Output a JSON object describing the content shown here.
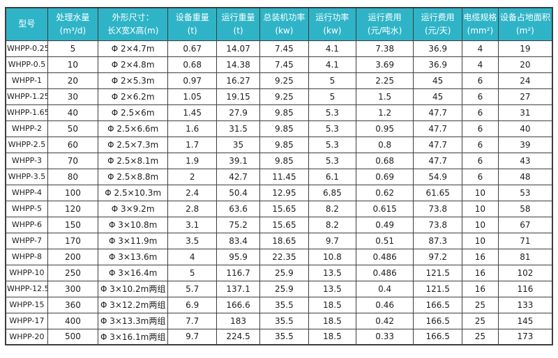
{
  "colors": {
    "header_bg": "#2fb4c7",
    "header_text": "#ffffff",
    "border": "#3d3d3d",
    "body_text": "#1d1d1d"
  },
  "table": {
    "columns": [
      {
        "id": "model",
        "line1": "型号",
        "line2": ""
      },
      {
        "id": "water-volume",
        "line1": "处理水量",
        "line2": "(m³/d)"
      },
      {
        "id": "dimensions",
        "line1": "外形尺寸：",
        "line2": "长X宽X高(m)"
      },
      {
        "id": "equipment-weight",
        "line1": "设备重量",
        "line2": "(t)"
      },
      {
        "id": "operating-weight",
        "line1": "运行重量",
        "line2": "(t)"
      },
      {
        "id": "total-power",
        "line1": "总装机功率",
        "line2": "(kw)"
      },
      {
        "id": "operating-power",
        "line1": "运行功率",
        "line2": "(kw)"
      },
      {
        "id": "cost-per-ton",
        "line1": "运行费用",
        "line2": "(元/吨水)"
      },
      {
        "id": "cost-per-day",
        "line1": "运行费用",
        "line2": "(元/天)"
      },
      {
        "id": "cable-spec",
        "line1": "电缆规格",
        "line2": "(mm²)"
      },
      {
        "id": "footprint",
        "line1": "设备占地面积",
        "line2": "(m²)"
      }
    ],
    "rows": [
      [
        "WHPP-0.25",
        "5",
        "Φ 2×4.7m",
        "0.67",
        "14.07",
        "7.45",
        "4.1",
        "7.38",
        "36.9",
        "4",
        "19"
      ],
      [
        "WHPP-0.5",
        "10",
        "Φ 2×4.8m",
        "0.68",
        "14.38",
        "7.45",
        "4.1",
        "3.69",
        "36.9",
        "4",
        "20"
      ],
      [
        "WHPP-1",
        "20",
        "Φ 2×5.3m",
        "0.97",
        "16.27",
        "9.25",
        "5",
        "2.25",
        "45",
        "6",
        "24"
      ],
      [
        "WHPP-1.25",
        "30",
        "Φ 2×6.2m",
        "1.05",
        "19.15",
        "9.25",
        "5",
        "1.5",
        "45",
        "6",
        "27"
      ],
      [
        "WHPP-1.65",
        "40",
        "Φ 2.5×6m",
        "1.45",
        "27.9",
        "9.85",
        "5.3",
        "1.2",
        "47.7",
        "6",
        "31"
      ],
      [
        "WHPP-2",
        "50",
        "Φ 2.5×6.6m",
        "1.6",
        "31.5",
        "9.85",
        "5.3",
        "0.95",
        "47.7",
        "6",
        "40"
      ],
      [
        "WHPP-2.5",
        "60",
        "Φ 2.5×7.3m",
        "1.7",
        "35",
        "9.85",
        "5.3",
        "0.8",
        "47.7",
        "6",
        "39"
      ],
      [
        "WHPP-3",
        "70",
        "Φ 2.5×8.1m",
        "1.9",
        "39.1",
        "9.85",
        "5.3",
        "0.68",
        "47.7",
        "6",
        "43"
      ],
      [
        "WHPP-3.5",
        "80",
        "Φ 2.5×8.8m",
        "2",
        "42.7",
        "11.45",
        "6.1",
        "0.69",
        "54.9",
        "6",
        "48"
      ],
      [
        "WHPP-4",
        "100",
        "Φ 2.5×10.3m",
        "2.4",
        "50.4",
        "12.95",
        "6.85",
        "0.62",
        "61.65",
        "10",
        "53"
      ],
      [
        "WHPP-5",
        "120",
        "Φ 3×9.2m",
        "2.8",
        "63.6",
        "15.65",
        "8.2",
        "0.615",
        "73.8",
        "10",
        "58"
      ],
      [
        "WHPP-6",
        "150",
        "Φ 3×10.8m",
        "3.1",
        "75.2",
        "15.65",
        "8.2",
        "0.49",
        "73.8",
        "10",
        "67"
      ],
      [
        "WHPP-7",
        "170",
        "Φ 3×11.9m",
        "3.5",
        "83.4",
        "18.65",
        "9.7",
        "0.51",
        "87.3",
        "10",
        "71"
      ],
      [
        "WHPP-8",
        "200",
        "Φ 3×13.6m",
        "4",
        "95.9",
        "22.35",
        "10.8",
        "0.486",
        "97.2",
        "16",
        "81"
      ],
      [
        "WHPP-10",
        "250",
        "Φ 3×16.4m",
        "5",
        "116.7",
        "25.9",
        "13.5",
        "0.486",
        "121.5",
        "16",
        "102"
      ],
      [
        "WHPP-12.5",
        "300",
        "Φ 3×10.2m两组",
        "5.7",
        "137.1",
        "25.9",
        "13.5",
        "0.4",
        "121.5",
        "16",
        "116"
      ],
      [
        "WHPP-15",
        "360",
        "Φ 3×12.2m两组",
        "6.9",
        "166.6",
        "35.5",
        "18.5",
        "0.46",
        "166.5",
        "25",
        "133"
      ],
      [
        "WHPP-17",
        "400",
        "Φ 3×13.3m两组",
        "7.7",
        "183",
        "35.5",
        "18.5",
        "0.42",
        "166.5",
        "25",
        "145"
      ],
      [
        "WHPP-20",
        "500",
        "Φ 3×16.1m两组",
        "9.7",
        "224.5",
        "35.5",
        "18.5",
        "0.33",
        "166.5",
        "25",
        "173"
      ]
    ]
  }
}
